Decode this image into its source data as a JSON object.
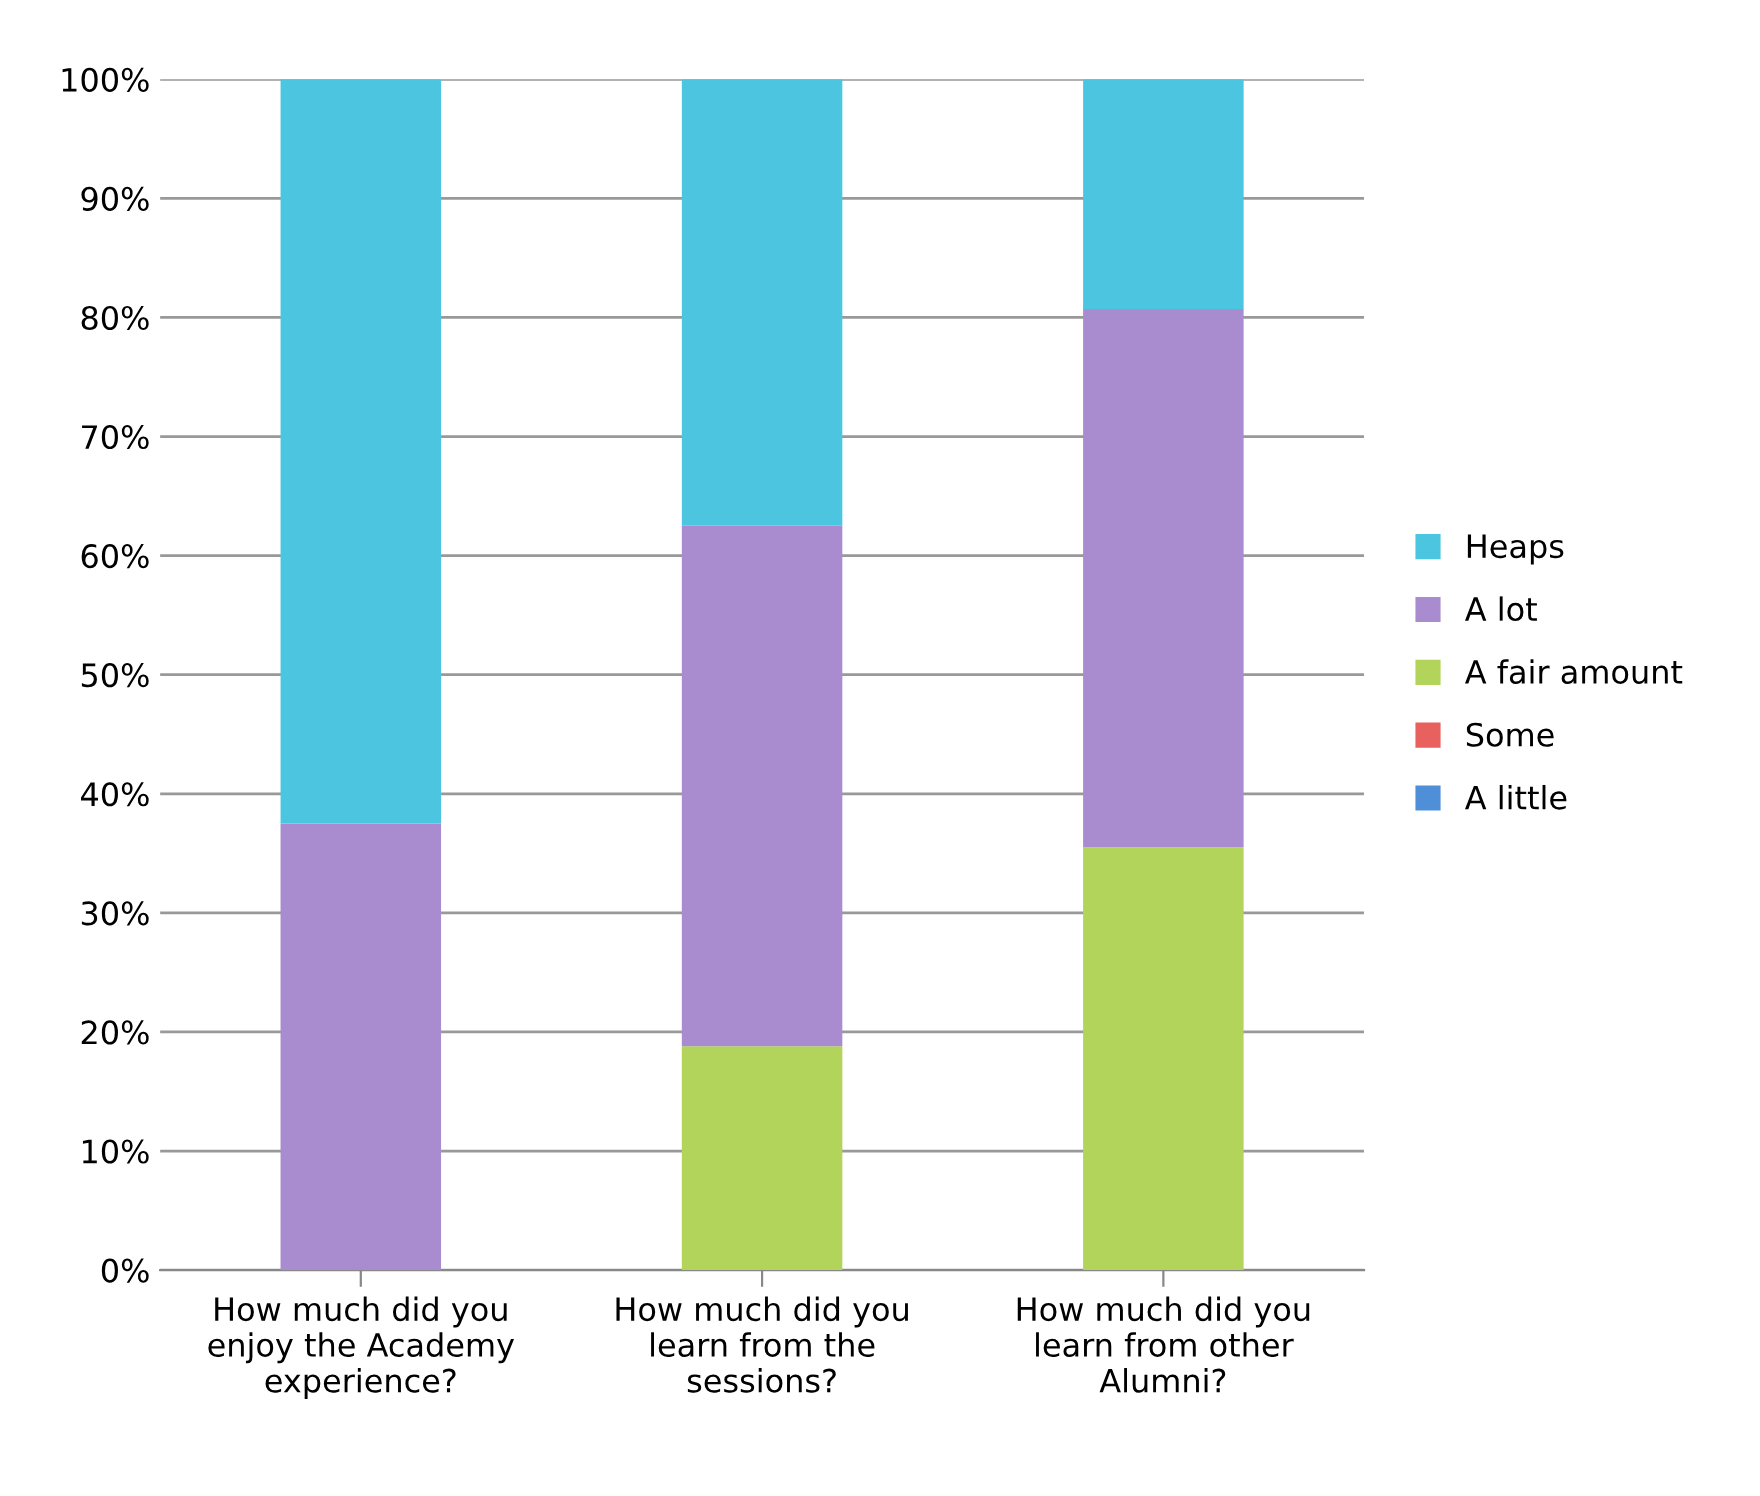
{
  "chart_data": {
    "type": "bar",
    "stacked": true,
    "categories": [
      "How much did you\nenjoy the Academy\nexperience?",
      "How much did you\nlearn from the\nsessions?",
      "How much did you\nlearn from other\nAlumni?"
    ],
    "series": [
      {
        "name": "A little",
        "color": "#4f8fd8",
        "values": [
          0,
          0,
          0
        ]
      },
      {
        "name": "Some",
        "color": "#e8615e",
        "values": [
          0,
          0,
          0
        ]
      },
      {
        "name": "A fair amount",
        "color": "#b3d45a",
        "values": [
          0,
          18.8,
          35.5
        ]
      },
      {
        "name": "A lot",
        "color": "#a98bcf",
        "values": [
          37.5,
          43.7,
          45.2
        ]
      },
      {
        "name": "Heaps",
        "color": "#4cc6e0",
        "values": [
          62.5,
          37.5,
          19.3
        ]
      }
    ],
    "ylim": [
      0,
      100
    ],
    "yticks": [
      {
        "value": 0,
        "label": "0%"
      },
      {
        "value": 10,
        "label": "10%"
      },
      {
        "value": 20,
        "label": "20%"
      },
      {
        "value": 30,
        "label": "30%"
      },
      {
        "value": 40,
        "label": "40%"
      },
      {
        "value": 50,
        "label": "50%"
      },
      {
        "value": 60,
        "label": "60%"
      },
      {
        "value": 70,
        "label": "70%"
      },
      {
        "value": 80,
        "label": "80%"
      },
      {
        "value": 90,
        "label": "90%"
      },
      {
        "value": 100,
        "label": "100%"
      }
    ],
    "grid": "y",
    "legend": "right"
  }
}
